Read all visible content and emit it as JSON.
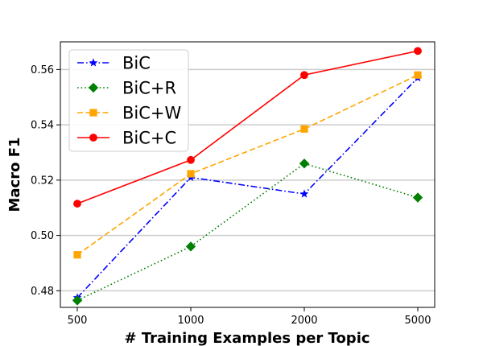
{
  "chart_data": {
    "type": "line",
    "title": "",
    "xlabel": "# Training Examples per Topic",
    "ylabel": "Macro F1",
    "categories": [
      "500",
      "1000",
      "2000",
      "5000"
    ],
    "ylim": [
      0.474,
      0.57
    ],
    "yticks": [
      "0.48",
      "0.50",
      "0.52",
      "0.54",
      "0.56"
    ],
    "ytick_values": [
      0.48,
      0.5,
      0.52,
      0.54,
      0.56
    ],
    "grid": "horizontal",
    "legend_position": "top-left",
    "series": [
      {
        "name": "BiC",
        "values": [
          0.4775,
          0.521,
          0.515,
          0.557
        ],
        "color": "#0000ff",
        "linestyle": "dashdot",
        "marker": "star"
      },
      {
        "name": "BiC+R",
        "values": [
          0.4765,
          0.496,
          0.526,
          0.5137
        ],
        "color": "#008000",
        "linestyle": "dotted",
        "marker": "diamond"
      },
      {
        "name": "BiC+W",
        "values": [
          0.493,
          0.5223,
          0.5385,
          0.558
        ],
        "color": "#ffa500",
        "linestyle": "dashed",
        "marker": "square"
      },
      {
        "name": "BiC+C",
        "values": [
          0.5115,
          0.5273,
          0.558,
          0.5667
        ],
        "color": "#ff0000",
        "linestyle": "solid",
        "marker": "circle"
      }
    ]
  }
}
